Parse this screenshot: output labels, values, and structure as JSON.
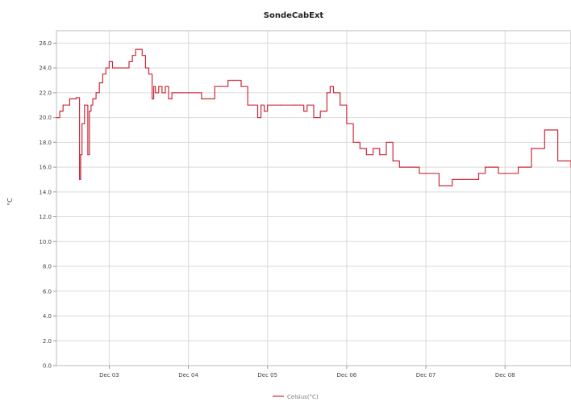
{
  "chart_data": {
    "type": "line",
    "title": "SondeCabExt",
    "xlabel": "",
    "ylabel": "°C",
    "ylim": [
      0,
      27
    ],
    "xlim": [
      "2022-12-02T08:00",
      "2022-12-08T20:00"
    ],
    "y_ticks": [
      0,
      2,
      4,
      6,
      8,
      10,
      12,
      14,
      16,
      18,
      20,
      22,
      24,
      26
    ],
    "y_tick_labels": [
      "0.0",
      "2.0",
      "4.0",
      "6.0",
      "8.0",
      "10.0",
      "12.0",
      "14.0",
      "16.0",
      "18.0",
      "20.0",
      "22.0",
      "24.0",
      "26.0"
    ],
    "x_ticks": [
      {
        "x": "2022-12-03T00:00",
        "label": "Dec 03"
      },
      {
        "x": "2022-12-04T00:00",
        "label": "Dec 04"
      },
      {
        "x": "2022-12-05T00:00",
        "label": "Dec 05"
      },
      {
        "x": "2022-12-06T00:00",
        "label": "Dec 06"
      },
      {
        "x": "2022-12-07T00:00",
        "label": "Dec 07"
      },
      {
        "x": "2022-12-08T00:00",
        "label": "Dec 08"
      }
    ],
    "grid": true,
    "legend_position": "bottom",
    "series": [
      {
        "name": "Celsius(°C)",
        "color": "#cc2b3b",
        "x": [
          "2022-12-02T08:00",
          "2022-12-02T09:00",
          "2022-12-02T10:00",
          "2022-12-02T12:00",
          "2022-12-02T14:00",
          "2022-12-02T15:00",
          "2022-12-02T15:20",
          "2022-12-02T15:45",
          "2022-12-02T16:30",
          "2022-12-02T17:30",
          "2022-12-02T18:00",
          "2022-12-02T18:30",
          "2022-12-02T19:00",
          "2022-12-02T20:00",
          "2022-12-02T21:00",
          "2022-12-02T22:00",
          "2022-12-02T23:00",
          "2022-12-03T00:00",
          "2022-12-03T01:00",
          "2022-12-03T02:00",
          "2022-12-03T04:00",
          "2022-12-03T06:00",
          "2022-12-03T07:00",
          "2022-12-03T08:00",
          "2022-12-03T09:00",
          "2022-12-03T10:00",
          "2022-12-03T11:00",
          "2022-12-03T12:00",
          "2022-12-03T13:00",
          "2022-12-03T13:30",
          "2022-12-03T14:00",
          "2022-12-03T15:00",
          "2022-12-03T16:00",
          "2022-12-03T17:00",
          "2022-12-03T18:00",
          "2022-12-03T19:00",
          "2022-12-03T20:00",
          "2022-12-03T22:00",
          "2022-12-04T00:00",
          "2022-12-04T04:00",
          "2022-12-04T08:00",
          "2022-12-04T12:00",
          "2022-12-04T14:00",
          "2022-12-04T16:00",
          "2022-12-04T18:00",
          "2022-12-04T21:00",
          "2022-12-04T22:00",
          "2022-12-04T23:00",
          "2022-12-05T00:00",
          "2022-12-05T04:00",
          "2022-12-05T08:00",
          "2022-12-05T10:00",
          "2022-12-05T11:00",
          "2022-12-05T12:00",
          "2022-12-05T14:00",
          "2022-12-05T16:00",
          "2022-12-05T18:00",
          "2022-12-05T19:00",
          "2022-12-05T20:00",
          "2022-12-05T22:00",
          "2022-12-06T00:00",
          "2022-12-06T02:00",
          "2022-12-06T04:00",
          "2022-12-06T06:00",
          "2022-12-06T08:00",
          "2022-12-06T10:00",
          "2022-12-06T12:00",
          "2022-12-06T14:00",
          "2022-12-06T16:00",
          "2022-12-06T18:00",
          "2022-12-06T20:00",
          "2022-12-06T22:00",
          "2022-12-07T00:00",
          "2022-12-07T04:00",
          "2022-12-07T08:00",
          "2022-12-07T12:00",
          "2022-12-07T16:00",
          "2022-12-07T18:00",
          "2022-12-07T20:00",
          "2022-12-07T22:00",
          "2022-12-08T00:00",
          "2022-12-08T04:00",
          "2022-12-08T08:00",
          "2022-12-08T12:00",
          "2022-12-08T16:00",
          "2022-12-08T20:00"
        ],
        "y": [
          20.0,
          20.5,
          21.0,
          21.5,
          21.6,
          15.0,
          17.0,
          19.5,
          21.0,
          17.0,
          20.5,
          21.0,
          21.5,
          22.0,
          22.8,
          23.5,
          24.0,
          24.5,
          24.0,
          24.0,
          24.0,
          24.5,
          25.0,
          25.5,
          25.5,
          25.0,
          24.0,
          23.5,
          21.5,
          22.5,
          22.0,
          22.5,
          22.0,
          22.5,
          21.5,
          22.0,
          22.0,
          22.0,
          22.0,
          21.5,
          22.5,
          23.0,
          23.0,
          22.5,
          21.0,
          20.0,
          21.0,
          20.5,
          21.0,
          21.0,
          21.0,
          21.0,
          20.5,
          21.0,
          20.0,
          20.5,
          22.0,
          22.5,
          22.0,
          21.0,
          19.5,
          18.0,
          17.5,
          17.0,
          17.5,
          17.0,
          18.0,
          16.5,
          16.0,
          16.0,
          16.0,
          15.5,
          15.5,
          14.5,
          15.0,
          15.0,
          15.5,
          16.0,
          16.0,
          15.5,
          15.5,
          16.0,
          17.5,
          19.0,
          16.5,
          16.0
        ]
      }
    ]
  }
}
